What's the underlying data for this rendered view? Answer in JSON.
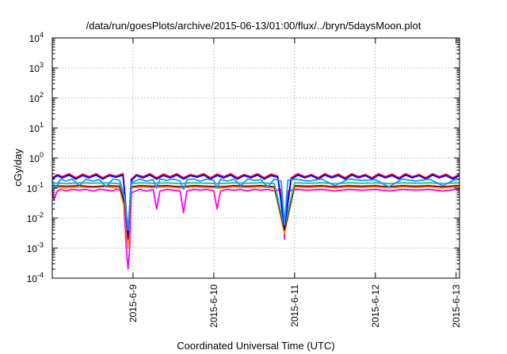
{
  "chart_data": {
    "type": "line",
    "title": "/data/run/goesPlots/archive/2015-06-13/01:00/flux/../bryn/5daysMoon.plot",
    "xlabel": "Coordinated Universal Time (UTC)",
    "ylabel": "cGy/day",
    "yscale": "log",
    "ylim": [
      0.0001,
      10000
    ],
    "xlim": [
      "2015-06-08T00:00",
      "2015-06-13T01:00"
    ],
    "grid": true,
    "legend": "none",
    "x_ticks": [
      {
        "value": "2015-06-09T00:00",
        "label": "2015-6-9"
      },
      {
        "value": "2015-06-10T00:00",
        "label": "2015-6-10"
      },
      {
        "value": "2015-06-11T00:00",
        "label": "2015-6-11"
      },
      {
        "value": "2015-06-12T00:00",
        "label": "2015-6-12"
      },
      {
        "value": "2015-06-13T00:00",
        "label": "2015-6-13"
      }
    ],
    "y_ticks": [
      {
        "value": 0.0001,
        "base": "10",
        "exp": "-4"
      },
      {
        "value": 0.001,
        "base": "10",
        "exp": "-3"
      },
      {
        "value": 0.01,
        "base": "10",
        "exp": "-2"
      },
      {
        "value": 0.1,
        "base": "10",
        "exp": "-1"
      },
      {
        "value": 1,
        "base": "10",
        "exp": "0"
      },
      {
        "value": 10,
        "base": "10",
        "exp": "1"
      },
      {
        "value": 100,
        "base": "10",
        "exp": "2"
      },
      {
        "value": 1000,
        "base": "10",
        "exp": "3"
      },
      {
        "value": 10000,
        "base": "10",
        "exp": "4"
      }
    ],
    "series": [
      {
        "color": "#ff00ff",
        "x": [
          "2015-06-08T00:00",
          "2015-06-08T00:30",
          "2015-06-08T01:30",
          "2015-06-08T02:30",
          "2015-06-08T04:00",
          "2015-06-08T06:00",
          "2015-06-08T08:00",
          "2015-06-08T10:00",
          "2015-06-08T12:00",
          "2015-06-08T14:00",
          "2015-06-08T16:00",
          "2015-06-08T18:00",
          "2015-06-08T19:00",
          "2015-06-08T20:00",
          "2015-06-08T21:00",
          "2015-06-08T21:30",
          "2015-06-08T22:00",
          "2015-06-08T22:30",
          "2015-06-08T23:00",
          "2015-06-08T23:30",
          "2015-06-09T02:00",
          "2015-06-09T04:00",
          "2015-06-09T06:00",
          "2015-06-09T07:00",
          "2015-06-09T08:00",
          "2015-06-09T10:00",
          "2015-06-09T12:00",
          "2015-06-09T14:00",
          "2015-06-09T15:00",
          "2015-06-09T16:00",
          "2015-06-09T18:00",
          "2015-06-09T20:00",
          "2015-06-09T22:00",
          "2015-06-10T00:00",
          "2015-06-10T01:00",
          "2015-06-10T02:00",
          "2015-06-10T04:00",
          "2015-06-10T06:00",
          "2015-06-10T08:00",
          "2015-06-10T10:00",
          "2015-06-10T12:00",
          "2015-06-10T14:00",
          "2015-06-10T16:00",
          "2015-06-10T18:00",
          "2015-06-10T20:00",
          "2015-06-10T20:45",
          "2015-06-10T21:00",
          "2015-06-10T21:15",
          "2015-06-10T22:00",
          "2015-06-11T00:00",
          "2015-06-11T04:00",
          "2015-06-11T08:00",
          "2015-06-11T12:00",
          "2015-06-11T16:00",
          "2015-06-11T20:00",
          "2015-06-12T00:00",
          "2015-06-12T04:00",
          "2015-06-12T08:00",
          "2015-06-12T12:00",
          "2015-06-12T16:00",
          "2015-06-12T20:00",
          "2015-06-13T00:00",
          "2015-06-13T01:00"
        ],
        "y": [
          0.09,
          0.04,
          0.08,
          0.09,
          0.08,
          0.09,
          0.085,
          0.09,
          0.08,
          0.09,
          0.085,
          0.08,
          0.09,
          0.085,
          0.08,
          0.01,
          0.001,
          0.0002,
          0.001,
          0.07,
          0.09,
          0.08,
          0.09,
          0.02,
          0.08,
          0.09,
          0.085,
          0.08,
          0.015,
          0.08,
          0.09,
          0.085,
          0.09,
          0.08,
          0.02,
          0.08,
          0.09,
          0.085,
          0.09,
          0.08,
          0.09,
          0.085,
          0.09,
          0.08,
          0.09,
          0.01,
          0.002,
          0.01,
          0.08,
          0.09,
          0.085,
          0.09,
          0.08,
          0.09,
          0.085,
          0.09,
          0.08,
          0.09,
          0.085,
          0.09,
          0.08,
          0.09,
          0.09
        ]
      },
      {
        "color": "#ff9900",
        "x": [
          "2015-06-08T00:00",
          "2015-06-08T04:00",
          "2015-06-08T08:00",
          "2015-06-08T12:00",
          "2015-06-08T16:00",
          "2015-06-08T20:00",
          "2015-06-08T21:30",
          "2015-06-08T22:30",
          "2015-06-08T23:30",
          "2015-06-09T02:00",
          "2015-06-09T06:00",
          "2015-06-09T10:00",
          "2015-06-09T14:00",
          "2015-06-09T18:00",
          "2015-06-09T22:00",
          "2015-06-10T02:00",
          "2015-06-10T06:00",
          "2015-06-10T10:00",
          "2015-06-10T14:00",
          "2015-06-10T18:00",
          "2015-06-10T21:00",
          "2015-06-11T00:00",
          "2015-06-11T04:00",
          "2015-06-11T08:00",
          "2015-06-11T12:00",
          "2015-06-11T16:00",
          "2015-06-11T20:00",
          "2015-06-12T00:00",
          "2015-06-12T04:00",
          "2015-06-12T08:00",
          "2015-06-12T12:00",
          "2015-06-12T16:00",
          "2015-06-12T20:00",
          "2015-06-13T00:00",
          "2015-06-13T01:00"
        ],
        "y": [
          0.11,
          0.1,
          0.11,
          0.105,
          0.11,
          0.1,
          0.02,
          0.001,
          0.1,
          0.11,
          0.105,
          0.11,
          0.1,
          0.11,
          0.105,
          0.1,
          0.11,
          0.105,
          0.11,
          0.1,
          0.003,
          0.11,
          0.105,
          0.11,
          0.1,
          0.11,
          0.105,
          0.11,
          0.1,
          0.11,
          0.105,
          0.11,
          0.1,
          0.11,
          0.11
        ]
      },
      {
        "color": "#8b0000",
        "x": [
          "2015-06-08T00:00",
          "2015-06-08T04:00",
          "2015-06-08T08:00",
          "2015-06-08T12:00",
          "2015-06-08T16:00",
          "2015-06-08T20:00",
          "2015-06-08T21:30",
          "2015-06-08T22:30",
          "2015-06-08T23:30",
          "2015-06-09T02:00",
          "2015-06-09T06:00",
          "2015-06-09T10:00",
          "2015-06-09T14:00",
          "2015-06-09T18:00",
          "2015-06-09T22:00",
          "2015-06-10T02:00",
          "2015-06-10T06:00",
          "2015-06-10T10:00",
          "2015-06-10T14:00",
          "2015-06-10T18:00",
          "2015-06-10T21:00",
          "2015-06-11T00:00",
          "2015-06-11T04:00",
          "2015-06-11T08:00",
          "2015-06-11T12:00",
          "2015-06-11T16:00",
          "2015-06-11T20:00",
          "2015-06-12T00:00",
          "2015-06-12T04:00",
          "2015-06-12T08:00",
          "2015-06-12T12:00",
          "2015-06-12T16:00",
          "2015-06-12T20:00",
          "2015-06-13T00:00",
          "2015-06-13T01:00"
        ],
        "y": [
          0.12,
          0.115,
          0.12,
          0.11,
          0.12,
          0.115,
          0.03,
          0.002,
          0.11,
          0.12,
          0.115,
          0.12,
          0.11,
          0.12,
          0.115,
          0.11,
          0.12,
          0.115,
          0.12,
          0.11,
          0.004,
          0.12,
          0.115,
          0.12,
          0.11,
          0.12,
          0.115,
          0.12,
          0.11,
          0.12,
          0.115,
          0.12,
          0.11,
          0.12,
          0.12
        ]
      },
      {
        "color": "#00c8a0",
        "x": [
          "2015-06-08T00:00",
          "2015-06-08T04:00",
          "2015-06-08T08:00",
          "2015-06-08T12:00",
          "2015-06-08T16:00",
          "2015-06-08T20:00",
          "2015-06-08T21:30",
          "2015-06-08T22:30",
          "2015-06-08T23:30",
          "2015-06-09T02:00",
          "2015-06-09T06:00",
          "2015-06-09T10:00",
          "2015-06-09T14:00",
          "2015-06-09T18:00",
          "2015-06-09T22:00",
          "2015-06-10T02:00",
          "2015-06-10T06:00",
          "2015-06-10T10:00",
          "2015-06-10T14:00",
          "2015-06-10T18:00",
          "2015-06-10T21:00",
          "2015-06-11T00:00",
          "2015-06-11T04:00",
          "2015-06-11T08:00",
          "2015-06-11T12:00",
          "2015-06-11T16:00",
          "2015-06-11T20:00",
          "2015-06-12T00:00",
          "2015-06-12T04:00",
          "2015-06-12T08:00",
          "2015-06-12T12:00",
          "2015-06-12T16:00",
          "2015-06-12T20:00",
          "2015-06-13T00:00",
          "2015-06-13T01:00"
        ],
        "y": [
          0.15,
          0.14,
          0.15,
          0.145,
          0.15,
          0.14,
          0.05,
          0.003,
          0.14,
          0.15,
          0.145,
          0.15,
          0.14,
          0.15,
          0.145,
          0.14,
          0.15,
          0.145,
          0.15,
          0.14,
          0.005,
          0.15,
          0.145,
          0.15,
          0.14,
          0.15,
          0.145,
          0.15,
          0.14,
          0.15,
          0.145,
          0.15,
          0.14,
          0.15,
          0.15
        ]
      },
      {
        "color": "#ff0000",
        "x": [
          "2015-06-08T00:00",
          "2015-06-08T01:30",
          "2015-06-08T03:00",
          "2015-06-08T05:00",
          "2015-06-08T07:00",
          "2015-06-08T09:00",
          "2015-06-08T11:00",
          "2015-06-08T13:00",
          "2015-06-08T15:00",
          "2015-06-08T17:00",
          "2015-06-08T19:00",
          "2015-06-08T21:00",
          "2015-06-08T21:30",
          "2015-06-08T22:30",
          "2015-06-08T23:30",
          "2015-06-09T01:00",
          "2015-06-09T03:00",
          "2015-06-09T05:00",
          "2015-06-09T07:00",
          "2015-06-09T09:00",
          "2015-06-09T11:00",
          "2015-06-09T13:00",
          "2015-06-09T15:00",
          "2015-06-09T17:00",
          "2015-06-09T19:00",
          "2015-06-09T21:00",
          "2015-06-09T23:00",
          "2015-06-10T01:00",
          "2015-06-10T03:00",
          "2015-06-10T05:00",
          "2015-06-10T07:00",
          "2015-06-10T09:00",
          "2015-06-10T11:00",
          "2015-06-10T13:00",
          "2015-06-10T15:00",
          "2015-06-10T17:00",
          "2015-06-10T19:00",
          "2015-06-10T21:00",
          "2015-06-10T23:00",
          "2015-06-11T01:00",
          "2015-06-11T03:00",
          "2015-06-11T05:00",
          "2015-06-11T07:00",
          "2015-06-11T09:00",
          "2015-06-11T11:00",
          "2015-06-11T13:00",
          "2015-06-11T15:00",
          "2015-06-11T17:00",
          "2015-06-11T19:00",
          "2015-06-11T21:00",
          "2015-06-11T23:00",
          "2015-06-12T01:00",
          "2015-06-12T03:00",
          "2015-06-12T05:00",
          "2015-06-12T07:00",
          "2015-06-12T09:00",
          "2015-06-12T11:00",
          "2015-06-12T13:00",
          "2015-06-12T15:00",
          "2015-06-12T17:00",
          "2015-06-12T19:00",
          "2015-06-12T21:00",
          "2015-06-12T23:00",
          "2015-06-13T01:00"
        ],
        "y": [
          0.22,
          0.28,
          0.24,
          0.3,
          0.22,
          0.29,
          0.24,
          0.3,
          0.22,
          0.28,
          0.25,
          0.3,
          0.08,
          0.003,
          0.2,
          0.28,
          0.24,
          0.3,
          0.22,
          0.29,
          0.24,
          0.3,
          0.22,
          0.28,
          0.25,
          0.3,
          0.22,
          0.29,
          0.24,
          0.3,
          0.22,
          0.28,
          0.24,
          0.3,
          0.22,
          0.29,
          0.25,
          0.006,
          0.22,
          0.3,
          0.24,
          0.28,
          0.22,
          0.3,
          0.24,
          0.29,
          0.22,
          0.3,
          0.24,
          0.28,
          0.22,
          0.3,
          0.24,
          0.29,
          0.22,
          0.3,
          0.24,
          0.28,
          0.22,
          0.3,
          0.24,
          0.29,
          0.22,
          0.28
        ]
      },
      {
        "color": "#0000ff",
        "x": [
          "2015-06-08T00:00",
          "2015-06-08T01:30",
          "2015-06-08T03:00",
          "2015-06-08T05:00",
          "2015-06-08T07:00",
          "2015-06-08T09:00",
          "2015-06-08T11:00",
          "2015-06-08T13:00",
          "2015-06-08T15:00",
          "2015-06-08T17:00",
          "2015-06-08T19:00",
          "2015-06-08T21:00",
          "2015-06-08T21:30",
          "2015-06-08T22:30",
          "2015-06-08T23:30",
          "2015-06-09T01:00",
          "2015-06-09T03:00",
          "2015-06-09T05:00",
          "2015-06-09T07:00",
          "2015-06-09T09:00",
          "2015-06-09T11:00",
          "2015-06-09T13:00",
          "2015-06-09T15:00",
          "2015-06-09T17:00",
          "2015-06-09T19:00",
          "2015-06-09T21:00",
          "2015-06-09T23:00",
          "2015-06-10T01:00",
          "2015-06-10T03:00",
          "2015-06-10T05:00",
          "2015-06-10T07:00",
          "2015-06-10T09:00",
          "2015-06-10T11:00",
          "2015-06-10T13:00",
          "2015-06-10T15:00",
          "2015-06-10T17:00",
          "2015-06-10T19:00",
          "2015-06-10T21:00",
          "2015-06-10T23:00",
          "2015-06-11T01:00",
          "2015-06-11T03:00",
          "2015-06-11T05:00",
          "2015-06-11T07:00",
          "2015-06-11T09:00",
          "2015-06-11T11:00",
          "2015-06-11T13:00",
          "2015-06-11T15:00",
          "2015-06-11T17:00",
          "2015-06-11T19:00",
          "2015-06-11T21:00",
          "2015-06-11T23:00",
          "2015-06-12T01:00",
          "2015-06-12T03:00",
          "2015-06-12T05:00",
          "2015-06-12T07:00",
          "2015-06-12T09:00",
          "2015-06-12T11:00",
          "2015-06-12T13:00",
          "2015-06-12T15:00",
          "2015-06-12T17:00",
          "2015-06-12T19:00",
          "2015-06-12T21:00",
          "2015-06-12T23:00",
          "2015-06-13T01:00"
        ],
        "y": [
          0.2,
          0.26,
          0.22,
          0.27,
          0.2,
          0.26,
          0.22,
          0.27,
          0.2,
          0.26,
          0.23,
          0.27,
          0.07,
          0.003,
          0.18,
          0.26,
          0.22,
          0.27,
          0.2,
          0.26,
          0.22,
          0.27,
          0.2,
          0.26,
          0.23,
          0.27,
          0.2,
          0.26,
          0.22,
          0.27,
          0.2,
          0.26,
          0.22,
          0.27,
          0.2,
          0.26,
          0.23,
          0.005,
          0.2,
          0.27,
          0.22,
          0.26,
          0.2,
          0.27,
          0.22,
          0.26,
          0.2,
          0.27,
          0.22,
          0.26,
          0.2,
          0.27,
          0.22,
          0.26,
          0.2,
          0.27,
          0.22,
          0.26,
          0.2,
          0.27,
          0.22,
          0.26,
          0.2,
          0.26
        ]
      },
      {
        "color": "#1e90ff",
        "x": [
          "2015-06-08T00:00",
          "2015-06-08T01:00",
          "2015-06-08T02:30",
          "2015-06-08T04:00",
          "2015-06-08T06:00",
          "2015-06-08T08:00",
          "2015-06-08T10:00",
          "2015-06-08T12:00",
          "2015-06-08T14:00",
          "2015-06-08T16:00",
          "2015-06-08T18:00",
          "2015-06-08T20:00",
          "2015-06-08T21:30",
          "2015-06-08T22:30",
          "2015-06-08T23:30",
          "2015-06-09T02:00",
          "2015-06-09T04:00",
          "2015-06-09T06:00",
          "2015-06-09T07:00",
          "2015-06-09T08:00",
          "2015-06-09T10:00",
          "2015-06-09T12:00",
          "2015-06-09T14:00",
          "2015-06-09T15:00",
          "2015-06-09T16:00",
          "2015-06-09T18:00",
          "2015-06-09T20:00",
          "2015-06-09T22:00",
          "2015-06-10T00:00",
          "2015-06-10T01:00",
          "2015-06-10T02:00",
          "2015-06-10T04:00",
          "2015-06-10T06:00",
          "2015-06-10T08:00",
          "2015-06-10T10:00",
          "2015-06-10T12:00",
          "2015-06-10T14:00",
          "2015-06-10T16:00",
          "2015-06-10T18:00",
          "2015-06-10T20:00",
          "2015-06-10T21:00",
          "2015-06-10T22:00",
          "2015-06-11T00:00",
          "2015-06-11T04:00",
          "2015-06-11T08:00",
          "2015-06-11T12:00",
          "2015-06-11T16:00",
          "2015-06-11T20:00",
          "2015-06-12T00:00",
          "2015-06-12T04:00",
          "2015-06-12T08:00",
          "2015-06-12T12:00",
          "2015-06-12T16:00",
          "2015-06-12T20:00",
          "2015-06-13T00:00",
          "2015-06-13T01:00"
        ],
        "y": [
          0.18,
          0.1,
          0.2,
          0.17,
          0.2,
          0.12,
          0.2,
          0.17,
          0.19,
          0.11,
          0.2,
          0.18,
          0.05,
          0.004,
          0.15,
          0.2,
          0.17,
          0.19,
          0.1,
          0.2,
          0.18,
          0.2,
          0.17,
          0.09,
          0.19,
          0.2,
          0.17,
          0.2,
          0.18,
          0.1,
          0.2,
          0.17,
          0.2,
          0.12,
          0.2,
          0.18,
          0.19,
          0.11,
          0.2,
          0.17,
          0.006,
          0.18,
          0.2,
          0.17,
          0.2,
          0.12,
          0.2,
          0.18,
          0.19,
          0.11,
          0.2,
          0.17,
          0.2,
          0.12,
          0.2,
          0.19
        ]
      }
    ]
  }
}
